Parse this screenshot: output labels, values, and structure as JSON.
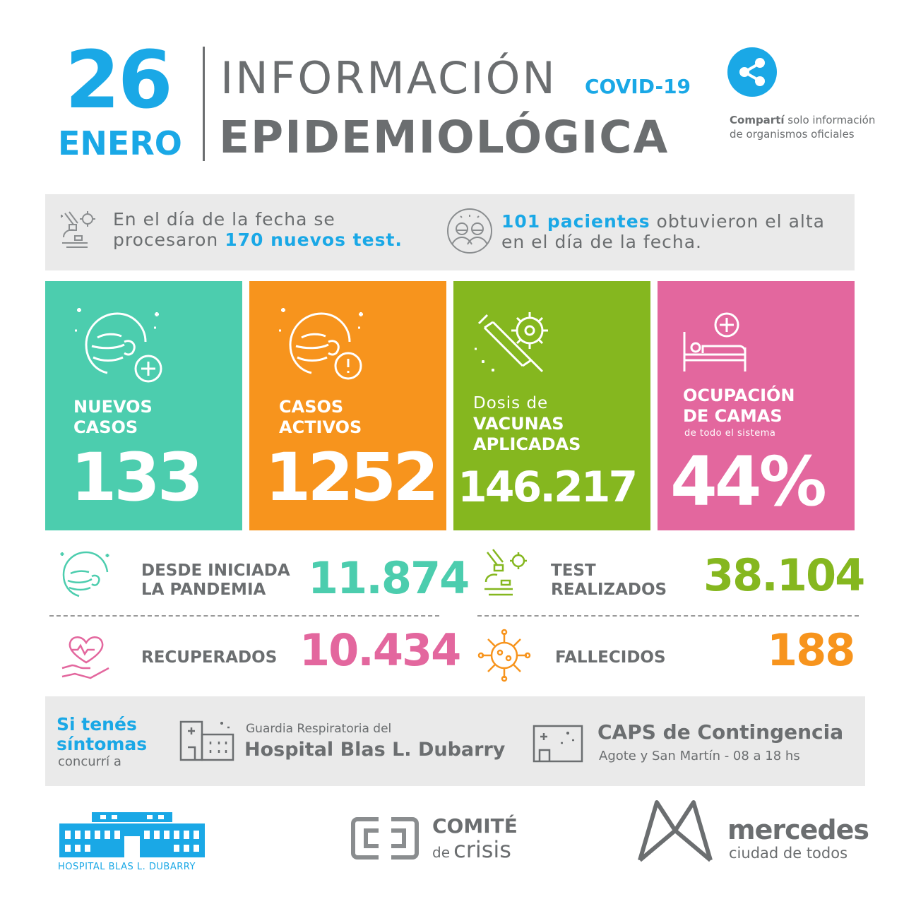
{
  "header": {
    "day": "26",
    "month": "ENERO",
    "title_line1": "INFORMACIÓN",
    "title_line2": "EPIDEMIOLÓGICA",
    "tag": "COVID-19",
    "share_note_bold": "Compartí",
    "share_note_rest": "solo información de organismos oficiales"
  },
  "info": {
    "tests": {
      "pre": "En el día de la fecha se procesaron",
      "highlight": "170 nuevos test."
    },
    "discharges": {
      "highlight": "101 pacientes",
      "post": "obtuvieron el alta en el día de la fecha."
    }
  },
  "cards": {
    "nuevos": {
      "label_l1": "NUEVOS",
      "label_l2": "CASOS",
      "value": "133",
      "color": "#4ccdae"
    },
    "activos": {
      "label_l1": "CASOS",
      "label_l2": "ACTIVOS",
      "value": "1252",
      "color": "#f7941d"
    },
    "vacunas": {
      "pre": "Dosis de",
      "label_l1": "VACUNAS",
      "label_l2": "APLICADAS",
      "value": "146.217",
      "color": "#85b71f"
    },
    "camas": {
      "label_l1": "OCUPACIÓN",
      "label_l2": "DE CAMAS",
      "sub": "de todo el sistema",
      "value": "44%",
      "color": "#e3679e"
    }
  },
  "stats": {
    "pandemia": {
      "label_l1": "DESDE INICIADA",
      "label_l2": "LA PANDEMIA",
      "value": "11.874",
      "color": "#4ccdae"
    },
    "tests": {
      "label_l1": "TEST",
      "label_l2": "REALIZADOS",
      "value": "38.104",
      "color": "#85b71f"
    },
    "recuperados": {
      "label": "RECUPERADOS",
      "value": "10.434",
      "color": "#e3679e"
    },
    "fallecidos": {
      "label": "FALLECIDOS",
      "value": "188",
      "color": "#f7941d"
    }
  },
  "symptoms": {
    "line1": "Si tenés",
    "line2": "síntomas",
    "line3": "concurrí a",
    "guardia_small": "Guardia Respiratoria del",
    "guardia_big": "Hospital Blas L. Dubarry",
    "caps_big": "CAPS de Contingencia",
    "caps_small": "Agote y San Martín - 08 a 18 hs"
  },
  "footer": {
    "hospital": "HOSPITAL BLAS L. DUBARRY",
    "comite_l1": "COMITÉ",
    "comite_de": "de",
    "comite_l2": "crisis",
    "mercedes": "mercedes",
    "mercedes_sub": "ciudad de todos"
  },
  "colors": {
    "blue": "#1aa8e6",
    "gray": "#6b6e70",
    "teal": "#4ccdae",
    "orange": "#f7941d",
    "green": "#85b71f",
    "pink": "#e3679e"
  }
}
